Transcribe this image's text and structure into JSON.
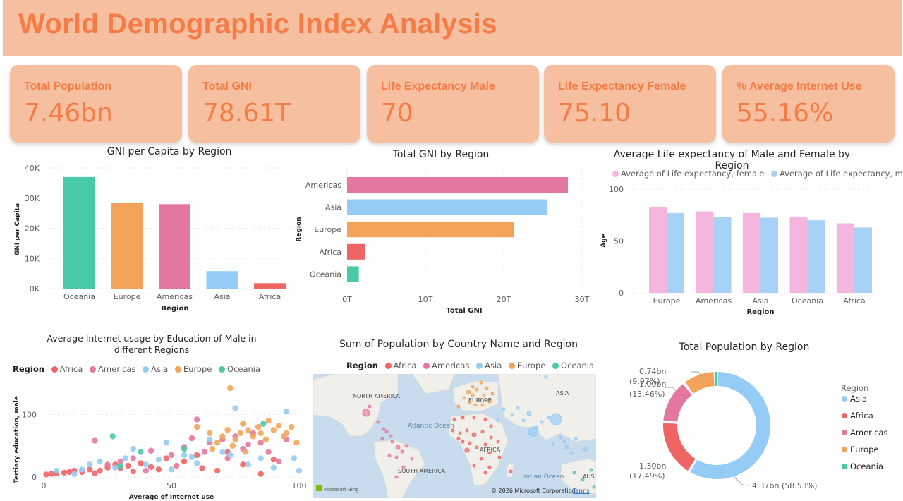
{
  "header": {
    "title": "World Demographic Index Analysis"
  },
  "colors": {
    "oceania": "#4ac9a6",
    "europe": "#f4a45a",
    "americas": "#e377a0",
    "asia": "#95ccf5",
    "africa": "#f06464",
    "female": "#f4b6dc",
    "male": "#a8d1f7",
    "accent": "#f47c46",
    "card": "#f6c0a0"
  },
  "kpis": [
    {
      "label": "Total Population",
      "value": "7.46bn"
    },
    {
      "label": "Total GNI",
      "value": "78.61T"
    },
    {
      "label": "Life Expectancy Male",
      "value": "70"
    },
    {
      "label": "Life Expectancy Female",
      "value": "75.10"
    },
    {
      "label": "% Average Internet Use",
      "value": "55.16%"
    }
  ],
  "legend": {
    "region_label": "Region",
    "regions": [
      "Africa",
      "Americas",
      "Asia",
      "Europe",
      "Oceania"
    ]
  },
  "chart_data": [
    {
      "id": "gni_per_capita",
      "type": "bar",
      "title": "GNI per Capita by Region",
      "xlabel": "Region",
      "ylabel": "GNI per Capita",
      "categories": [
        "Oceania",
        "Europe",
        "Americas",
        "Asia",
        "Africa"
      ],
      "values": [
        37000,
        28500,
        28000,
        5800,
        1800
      ],
      "yticks": [
        "0K",
        "10K",
        "20K",
        "30K",
        "40K"
      ],
      "ylim": [
        0,
        40000
      ]
    },
    {
      "id": "total_gni",
      "type": "bar",
      "orientation": "horizontal",
      "title": "Total GNI by Region",
      "xlabel": "Total GNI",
      "ylabel": "Region",
      "categories": [
        "Americas",
        "Asia",
        "Europe",
        "Africa",
        "Oceania"
      ],
      "values": [
        28.2,
        25.6,
        21.3,
        2.3,
        1.5
      ],
      "xticks": [
        "0T",
        "10T",
        "20T",
        "30T"
      ],
      "xlim": [
        0,
        30
      ]
    },
    {
      "id": "life_expectancy",
      "type": "bar",
      "title": "Average Life expectancy of Male and Female by Region",
      "xlabel": "Region",
      "ylabel": "Age",
      "categories": [
        "Europe",
        "Americas",
        "Asia",
        "Oceania",
        "Africa"
      ],
      "series": [
        {
          "name": "Average of Life expectancy, female",
          "values": [
            82.5,
            78.5,
            77,
            73.5,
            67
          ]
        },
        {
          "name": "Average of Life expectancy, male",
          "values": [
            77,
            73,
            72.5,
            70,
            63
          ]
        }
      ],
      "yticks": [
        "0",
        "50",
        "100"
      ],
      "ylim": [
        0,
        100
      ]
    },
    {
      "id": "internet_scatter",
      "type": "scatter",
      "title": "Average Internet usage by Education of Male in different Regions",
      "xlabel": "Average of Internet use",
      "ylabel": "Tertiary education, male",
      "xticks": [
        "0",
        "50",
        "100"
      ],
      "yticks": [
        "0",
        "100"
      ],
      "xlim": [
        0,
        100
      ],
      "ylim": [
        0,
        150
      ],
      "series": [
        {
          "name": "Africa",
          "points": [
            [
              1,
              4
            ],
            [
              3,
              5
            ],
            [
              5,
              6
            ],
            [
              8,
              7
            ],
            [
              12,
              10
            ],
            [
              15,
              8
            ],
            [
              18,
              12
            ],
            [
              22,
              10
            ],
            [
              25,
              15
            ],
            [
              28,
              20
            ],
            [
              30,
              14
            ],
            [
              33,
              18
            ],
            [
              38,
              22
            ],
            [
              42,
              16
            ],
            [
              48,
              30
            ],
            [
              55,
              25
            ],
            [
              60,
              35
            ],
            [
              68,
              10
            ],
            [
              72,
              40
            ],
            [
              85,
              5
            ],
            [
              10,
              8
            ],
            [
              20,
              6
            ],
            [
              35,
              9
            ],
            [
              45,
              12
            ],
            [
              62,
              14
            ],
            [
              78,
              20
            ],
            [
              90,
              28
            ]
          ]
        },
        {
          "name": "Americas",
          "points": [
            [
              20,
              58
            ],
            [
              30,
              25
            ],
            [
              35,
              30
            ],
            [
              42,
              42
            ],
            [
              50,
              35
            ],
            [
              55,
              48
            ],
            [
              58,
              62
            ],
            [
              63,
              40
            ],
            [
              65,
              55
            ],
            [
              70,
              60
            ],
            [
              72,
              30
            ],
            [
              75,
              65
            ],
            [
              78,
              45
            ],
            [
              80,
              52
            ],
            [
              82,
              70
            ],
            [
              85,
              55
            ],
            [
              88,
              40
            ],
            [
              92,
              25
            ],
            [
              95,
              60
            ],
            [
              25,
              20
            ],
            [
              40,
              10
            ],
            [
              52,
              18
            ],
            [
              60,
              92
            ]
          ]
        },
        {
          "name": "Asia",
          "points": [
            [
              5,
              10
            ],
            [
              12,
              5
            ],
            [
              15,
              12
            ],
            [
              18,
              20
            ],
            [
              22,
              25
            ],
            [
              28,
              15
            ],
            [
              32,
              30
            ],
            [
              35,
              45
            ],
            [
              40,
              20
            ],
            [
              45,
              28
            ],
            [
              50,
              12
            ],
            [
              55,
              35
            ],
            [
              60,
              22
            ],
            [
              65,
              60
            ],
            [
              70,
              40
            ],
            [
              73,
              35
            ],
            [
              75,
              110
            ],
            [
              80,
              20
            ],
            [
              85,
              30
            ],
            [
              90,
              15
            ],
            [
              95,
              105
            ],
            [
              98,
              30
            ],
            [
              100,
              10
            ],
            [
              48,
              55
            ],
            [
              58,
              32
            ]
          ]
        },
        {
          "name": "Europe",
          "points": [
            [
              60,
              80
            ],
            [
              65,
              70
            ],
            [
              68,
              55
            ],
            [
              70,
              65
            ],
            [
              72,
              75
            ],
            [
              74,
              50
            ],
            [
              75,
              60
            ],
            [
              77,
              70
            ],
            [
              78,
              85
            ],
            [
              80,
              75
            ],
            [
              82,
              65
            ],
            [
              84,
              80
            ],
            [
              85,
              70
            ],
            [
              87,
              60
            ],
            [
              88,
              90
            ],
            [
              90,
              75
            ],
            [
              92,
              82
            ],
            [
              94,
              65
            ],
            [
              95,
              70
            ],
            [
              97,
              80
            ],
            [
              99,
              55
            ],
            [
              73,
              142
            ],
            [
              66,
              45
            ],
            [
              79,
              40
            ]
          ]
        },
        {
          "name": "Oceania",
          "points": [
            [
              27,
              65
            ],
            [
              38,
              40
            ],
            [
              86,
              85
            ],
            [
              30,
              18
            ],
            [
              55,
              45
            ]
          ]
        }
      ]
    },
    {
      "id": "population_map",
      "type": "map",
      "title": "Sum of Population by Country Name and Region",
      "map_labels": [
        "NORTH AMERICA",
        "EUROPE",
        "ASIA",
        "Atlantic Ocean",
        "AFRICA",
        "SOUTH AMERICA",
        "Indian Ocean",
        "AUS"
      ],
      "attribution": "© 2026 Microsoft Corporation",
      "terms": "Terms",
      "bing": "Microsoft Bing"
    },
    {
      "id": "population_donut",
      "type": "pie",
      "title": "Total Population by Region",
      "legend_title": "Region",
      "categories": [
        "Asia",
        "Africa",
        "Americas",
        "Europe",
        "Oceania"
      ],
      "values": [
        4.37,
        1.3,
        1.0,
        0.74,
        0.04
      ],
      "labels": [
        "4.37bn (58.53%)",
        "1.30bn (17.49%)",
        "1.00bn (13.46%)",
        "0.74bn (9.97%)",
        ""
      ]
    }
  ]
}
